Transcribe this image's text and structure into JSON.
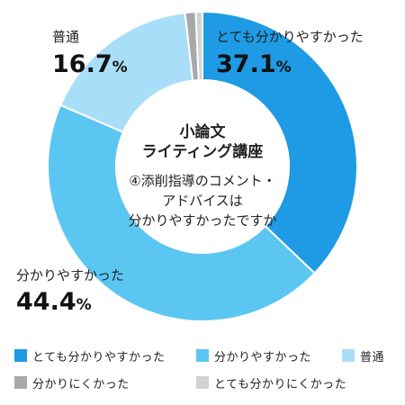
{
  "chart_data": {
    "type": "pie",
    "variant": "donut",
    "title_lines": [
      "小論文",
      "ライティング講座"
    ],
    "question_lines": [
      "④添削指導のコメント・",
      "アドバイスは",
      "分かりやすかったですか"
    ],
    "slices": [
      {
        "name": "とても分かりやすかった",
        "value": 37.1,
        "value_label": "37.1",
        "color": "#1e9be4"
      },
      {
        "name": "分かりやすかった",
        "value": 44.4,
        "value_label": "44.4",
        "color": "#5cc6f2"
      },
      {
        "name": "普通",
        "value": 16.7,
        "value_label": "16.7",
        "color": "#a9def8"
      },
      {
        "name": "分かりにくかった",
        "value": 1.1,
        "value_label": "",
        "color": "#a8a8a8"
      },
      {
        "name": "とても分かりにくかった",
        "value": 0.7,
        "value_label": "",
        "color": "#d2d2d2"
      }
    ],
    "percent_suffix": "%",
    "legend_position": "bottom"
  },
  "legend": [
    {
      "label": "とても分かりやすかった",
      "color": "#1e9be4"
    },
    {
      "label": "分かりやすかった",
      "color": "#5cc6f2"
    },
    {
      "label": "普通",
      "color": "#a9def8"
    },
    {
      "label": "分かりにくかった",
      "color": "#a8a8a8"
    },
    {
      "label": "とても分かりにくかった",
      "color": "#d2d2d2"
    }
  ]
}
